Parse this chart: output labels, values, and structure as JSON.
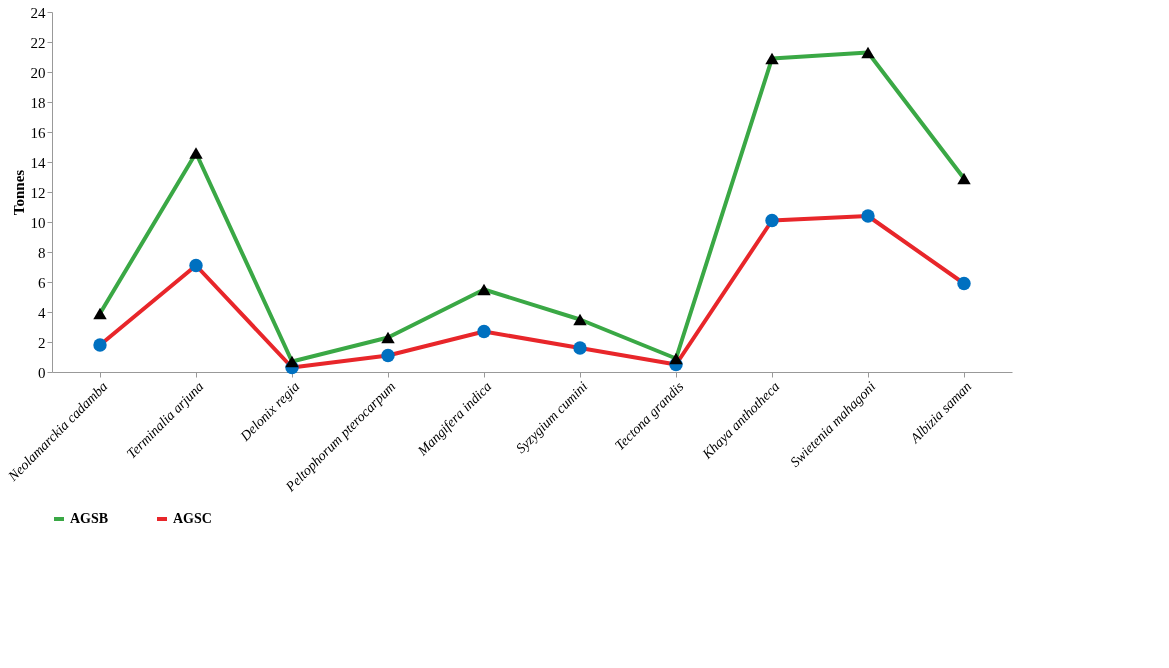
{
  "chart_data": {
    "type": "line",
    "ylabel": "Tonnes",
    "categories": [
      "Neolamarckia cadamba",
      "Terminalia arjuna",
      "Delonix regia",
      "Peltophorum pterocarpum",
      "Mangifera indica",
      "Syzygium cumini",
      "Tectona grandis",
      "Khaya anthotheca",
      "Swietenia mahagoni",
      "Albizia saman"
    ],
    "series": [
      {
        "name": "AGSB",
        "color": "#3aa845",
        "marker": "triangle",
        "values": [
          3.9,
          14.6,
          0.7,
          2.3,
          5.5,
          3.5,
          0.9,
          20.9,
          21.3,
          12.9
        ]
      },
      {
        "name": "AGSC",
        "color": "#e8262a",
        "marker": "circle",
        "values": [
          1.8,
          7.1,
          0.3,
          1.1,
          2.7,
          1.6,
          0.5,
          10.1,
          10.4,
          5.9
        ]
      }
    ],
    "ylim": [
      0,
      24
    ],
    "yticks": [
      0,
      2,
      4,
      6,
      8,
      10,
      12,
      14,
      16,
      18,
      20,
      22,
      24
    ],
    "grid": false,
    "legend": "bottom"
  }
}
